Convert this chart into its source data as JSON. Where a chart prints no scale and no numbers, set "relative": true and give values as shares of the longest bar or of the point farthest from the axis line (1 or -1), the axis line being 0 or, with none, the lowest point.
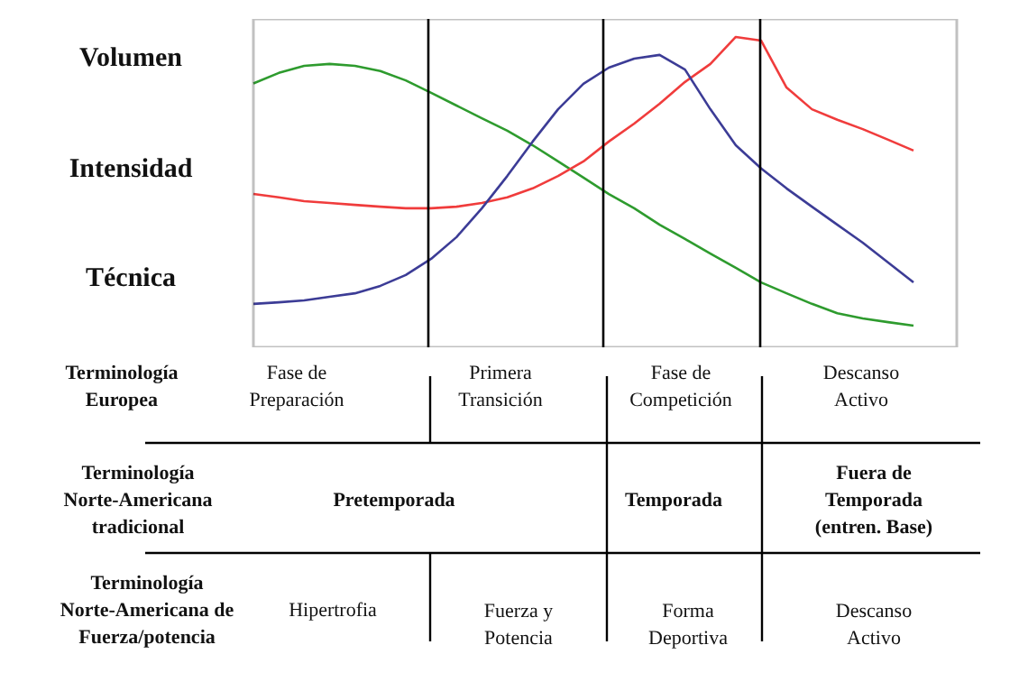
{
  "chart_data": {
    "type": "line",
    "relative": true,
    "categories": [
      null,
      null,
      null,
      null,
      null,
      null,
      null,
      null,
      null,
      null,
      null,
      null,
      null,
      null,
      null,
      null,
      null,
      null,
      null,
      null,
      null,
      null,
      null,
      null,
      null,
      null,
      null
    ],
    "series": [
      {
        "name": "Volumen",
        "color": "#2e9b2e",
        "values": [
          0.85,
          0.884,
          0.907,
          0.913,
          0.907,
          0.89,
          0.86,
          0.82,
          0.779,
          0.738,
          0.698,
          0.651,
          0.599,
          0.547,
          0.494,
          0.448,
          0.395,
          0.349,
          0.302,
          0.256,
          0.209,
          0.174,
          0.14,
          0.11,
          0.093,
          0.081,
          0.07
        ]
      },
      {
        "name": "Intensidad",
        "color": "#f03c3c",
        "values": [
          0.494,
          0.483,
          0.471,
          0.465,
          0.459,
          0.453,
          0.448,
          0.448,
          0.453,
          0.465,
          0.483,
          0.512,
          0.552,
          0.599,
          0.663,
          0.721,
          0.785,
          0.855,
          0.913,
          1.0,
          0.988,
          0.837,
          0.767,
          0.733,
          0.703,
          0.669,
          0.634
        ]
      },
      {
        "name": "Técnica",
        "color": "#3c3c96",
        "values": [
          0.14,
          0.145,
          0.151,
          0.163,
          0.174,
          0.198,
          0.233,
          0.285,
          0.355,
          0.448,
          0.552,
          0.663,
          0.767,
          0.849,
          0.901,
          0.93,
          0.942,
          0.895,
          0.767,
          0.651,
          0.576,
          0.512,
          0.453,
          0.395,
          0.337,
          0.273,
          0.209
        ]
      }
    ],
    "annotations": [
      "Terminología\nEuropea",
      "Fase de\nPreparación",
      "Primera\nTransición",
      "Fase de\nCompetición",
      "Descanso\nActivo",
      "Terminología\nNorte-Americana\ntradicional",
      "Pretemporada",
      "Temporada",
      "Fuera de\nTemporada\n(entren. Base)",
      "Terminología\nNorte-Americana de\nFuerza/potencia",
      "Hipertrofia",
      "Fuerza y\nPotencia",
      "Forma\nDeportiva",
      "Descanso\nActivo"
    ]
  }
}
